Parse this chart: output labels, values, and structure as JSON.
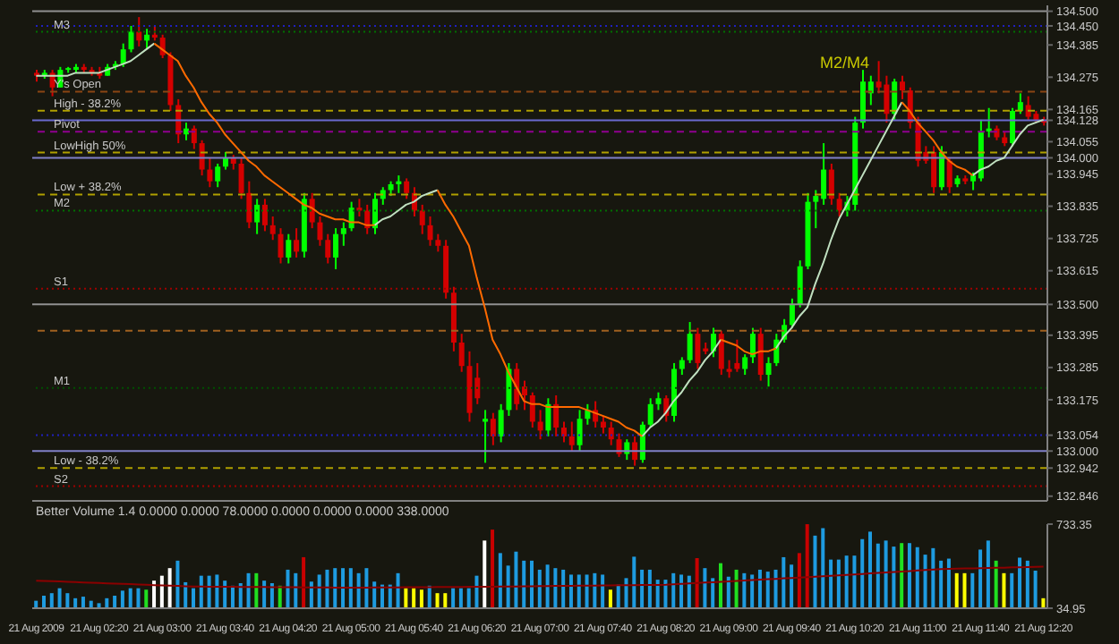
{
  "chart_data": [
    {
      "type": "candlestick",
      "categories": [
        null,
        null,
        null,
        null,
        null,
        null,
        null,
        null,
        null,
        null,
        null,
        null,
        null,
        null,
        null,
        null,
        null,
        null,
        null,
        null,
        null,
        null,
        null,
        null,
        null,
        null,
        null,
        null,
        null,
        null,
        null,
        null,
        null,
        null,
        null,
        null,
        null,
        null,
        null,
        null,
        null,
        null,
        null,
        null,
        null,
        null,
        null,
        null,
        null,
        null,
        null,
        null,
        null,
        null,
        null,
        null,
        null,
        null,
        null,
        null,
        null,
        null,
        null,
        null,
        null,
        null,
        null,
        null,
        null,
        null,
        null,
        null,
        null,
        null,
        null,
        null,
        null,
        null,
        null,
        null,
        null,
        null,
        null,
        null,
        null,
        null,
        null,
        null,
        null,
        null,
        null,
        null,
        null,
        null,
        null,
        null,
        null,
        null,
        null,
        null,
        null,
        null,
        null,
        null,
        null,
        null,
        null,
        null,
        null,
        null,
        null,
        null,
        null,
        null,
        null,
        null,
        null,
        null,
        null,
        null,
        null,
        null,
        null,
        null,
        null,
        null,
        null,
        null,
        null
      ],
      "tick_labels": "y",
      "ylim": [
        132.83,
        134.52
      ],
      "yticks": [
        {
          "value": 134.5,
          "label": "134.500"
        },
        {
          "value": 134.45,
          "label": "134.450"
        },
        134.385,
        134.275,
        134.165,
        134.128,
        134.055,
        {
          "value": 134.0,
          "label": "134.000"
        },
        133.945,
        133.835,
        133.725,
        133.615,
        {
          "value": 133.5,
          "label": "133.500"
        },
        133.395,
        133.285,
        133.175,
        133.054,
        {
          "value": 133.0,
          "label": "133.000"
        },
        132.942,
        132.846
      ],
      "ohlc": [
        [
          134.29,
          134.3,
          134.26,
          134.28
        ],
        [
          134.28,
          134.3,
          134.27,
          134.29
        ],
        [
          134.29,
          134.3,
          134.21,
          134.24
        ],
        [
          134.24,
          134.31,
          134.24,
          134.3
        ],
        [
          134.3,
          134.31,
          134.29,
          134.3
        ],
        [
          134.3,
          134.32,
          134.29,
          134.31
        ],
        [
          134.31,
          134.32,
          134.29,
          134.3
        ],
        [
          134.3,
          134.31,
          134.28,
          134.29
        ],
        [
          134.29,
          134.31,
          134.27,
          134.28
        ],
        [
          134.28,
          134.32,
          134.28,
          134.31
        ],
        [
          134.31,
          134.33,
          134.3,
          134.32
        ],
        [
          134.32,
          134.39,
          134.31,
          134.37
        ],
        [
          134.37,
          134.45,
          134.36,
          134.43
        ],
        [
          134.43,
          134.48,
          134.38,
          134.4
        ],
        [
          134.4,
          134.44,
          134.37,
          134.42
        ],
        [
          134.42,
          134.45,
          134.4,
          134.41
        ],
        [
          134.41,
          134.42,
          134.34,
          134.35
        ],
        [
          134.35,
          134.36,
          134.16,
          134.18
        ],
        [
          134.18,
          134.2,
          134.05,
          134.08
        ],
        [
          134.08,
          134.12,
          134.06,
          134.1
        ],
        [
          134.1,
          134.11,
          134.03,
          134.05
        ],
        [
          134.05,
          134.06,
          133.94,
          133.96
        ],
        [
          133.96,
          134.0,
          133.9,
          133.92
        ],
        [
          133.92,
          133.98,
          133.9,
          133.97
        ],
        [
          133.97,
          134.02,
          133.96,
          134.0
        ],
        [
          134.0,
          134.01,
          133.96,
          133.98
        ],
        [
          133.98,
          134.0,
          133.86,
          133.88
        ],
        [
          133.88,
          133.92,
          133.76,
          133.78
        ],
        [
          133.78,
          133.86,
          133.74,
          133.84
        ],
        [
          133.84,
          133.86,
          133.75,
          133.77
        ],
        [
          133.77,
          133.8,
          133.72,
          133.74
        ],
        [
          133.74,
          133.76,
          133.64,
          133.66
        ],
        [
          133.66,
          133.74,
          133.64,
          133.72
        ],
        [
          133.72,
          133.76,
          133.66,
          133.68
        ],
        [
          133.68,
          133.88,
          133.66,
          133.86
        ],
        [
          133.86,
          133.88,
          133.76,
          133.78
        ],
        [
          133.78,
          133.8,
          133.7,
          133.72
        ],
        [
          133.72,
          133.74,
          133.64,
          133.66
        ],
        [
          133.66,
          133.76,
          133.62,
          133.74
        ],
        [
          133.74,
          133.78,
          133.7,
          133.76
        ],
        [
          133.76,
          133.85,
          133.75,
          133.83
        ],
        [
          133.83,
          133.86,
          133.8,
          133.82
        ],
        [
          133.82,
          133.84,
          133.74,
          133.76
        ],
        [
          133.76,
          133.88,
          133.74,
          133.86
        ],
        [
          133.86,
          133.9,
          133.84,
          133.89
        ],
        [
          133.89,
          133.92,
          133.87,
          133.91
        ],
        [
          133.91,
          133.94,
          133.88,
          133.92
        ],
        [
          133.92,
          133.93,
          133.86,
          133.88
        ],
        [
          133.88,
          133.9,
          133.8,
          133.82
        ],
        [
          133.82,
          133.84,
          133.74,
          133.77
        ],
        [
          133.77,
          133.8,
          133.7,
          133.72
        ],
        [
          133.72,
          133.74,
          133.68,
          133.7
        ],
        [
          133.7,
          133.72,
          133.52,
          133.54
        ],
        [
          133.54,
          133.56,
          133.34,
          133.37
        ],
        [
          133.37,
          133.4,
          133.27,
          133.29
        ],
        [
          133.29,
          133.34,
          133.1,
          133.13
        ],
        [
          133.25,
          133.3,
          133.16,
          133.18
        ],
        [
          133.1,
          133.14,
          132.96,
          133.11
        ],
        [
          133.11,
          133.13,
          133.02,
          133.05
        ],
        [
          133.05,
          133.16,
          133.03,
          133.14
        ],
        [
          133.14,
          133.3,
          133.12,
          133.28
        ],
        [
          133.28,
          133.3,
          133.14,
          133.16
        ],
        [
          133.22,
          133.24,
          133.14,
          133.19
        ],
        [
          133.19,
          133.2,
          133.08,
          133.1
        ],
        [
          133.1,
          133.14,
          133.04,
          133.07
        ],
        [
          133.07,
          133.18,
          133.05,
          133.16
        ],
        [
          133.16,
          133.19,
          133.05,
          133.08
        ],
        [
          133.08,
          133.1,
          133.03,
          133.05
        ],
        [
          133.05,
          133.1,
          133.0,
          133.02
        ],
        [
          133.02,
          133.14,
          133.0,
          133.11
        ],
        [
          133.11,
          133.16,
          133.09,
          133.14
        ],
        [
          133.14,
          133.17,
          133.08,
          133.1
        ],
        [
          133.1,
          133.12,
          133.06,
          133.08
        ],
        [
          133.08,
          133.1,
          133.02,
          133.04
        ],
        [
          133.04,
          133.06,
          132.98,
          132.99
        ],
        [
          132.99,
          133.04,
          132.97,
          133.03
        ],
        [
          133.03,
          133.05,
          132.95,
          132.97
        ],
        [
          132.97,
          133.1,
          132.96,
          133.09
        ],
        [
          133.09,
          133.18,
          133.08,
          133.16
        ],
        [
          133.16,
          133.2,
          133.14,
          133.18
        ],
        [
          133.18,
          133.19,
          133.1,
          133.12
        ],
        [
          133.12,
          133.3,
          133.1,
          133.28
        ],
        [
          133.28,
          133.32,
          133.26,
          133.31
        ],
        [
          133.31,
          133.44,
          133.3,
          133.4
        ],
        [
          133.4,
          133.42,
          133.28,
          133.3
        ],
        [
          133.35,
          133.37,
          133.33,
          133.34
        ],
        [
          133.34,
          133.42,
          133.32,
          133.4
        ],
        [
          133.4,
          133.41,
          133.26,
          133.28
        ],
        [
          133.28,
          133.31,
          133.25,
          133.27
        ],
        [
          133.3,
          133.38,
          133.27,
          133.28
        ],
        [
          133.28,
          133.33,
          133.26,
          133.32
        ],
        [
          133.32,
          133.42,
          133.3,
          133.4
        ],
        [
          133.4,
          133.42,
          133.24,
          133.26
        ],
        [
          133.26,
          133.32,
          133.22,
          133.3
        ],
        [
          133.3,
          133.4,
          133.29,
          133.38
        ],
        [
          133.38,
          133.45,
          133.37,
          133.43
        ],
        [
          133.43,
          133.52,
          133.42,
          133.5
        ],
        [
          133.5,
          133.65,
          133.49,
          133.63
        ],
        [
          133.63,
          133.88,
          133.62,
          133.85
        ],
        [
          133.85,
          133.89,
          133.76,
          133.87
        ],
        [
          133.86,
          134.05,
          133.84,
          133.96
        ],
        [
          133.96,
          133.98,
          133.84,
          133.86
        ],
        [
          133.86,
          133.88,
          133.8,
          133.82
        ],
        [
          133.82,
          133.87,
          133.8,
          133.85
        ],
        [
          133.84,
          134.14,
          133.82,
          134.12
        ],
        [
          134.12,
          134.3,
          134.1,
          134.26
        ],
        [
          134.22,
          134.28,
          134.18,
          134.26
        ],
        [
          134.26,
          134.33,
          134.22,
          134.24
        ],
        [
          134.25,
          134.28,
          134.12,
          134.15
        ],
        [
          134.15,
          134.27,
          134.13,
          134.26
        ],
        [
          134.26,
          134.28,
          134.2,
          134.23
        ],
        [
          134.23,
          134.24,
          134.1,
          134.12
        ],
        [
          134.12,
          134.14,
          133.97,
          133.99
        ],
        [
          134.02,
          134.04,
          133.98,
          133.99
        ],
        [
          134.02,
          134.04,
          133.88,
          133.9
        ],
        [
          133.9,
          134.04,
          133.89,
          134.02
        ],
        [
          133.99,
          134.0,
          133.88,
          133.9
        ],
        [
          133.91,
          133.94,
          133.9,
          133.93
        ],
        [
          133.93,
          133.94,
          133.91,
          133.92
        ],
        [
          133.92,
          133.95,
          133.89,
          133.94
        ],
        [
          133.93,
          134.13,
          133.92,
          134.09
        ],
        [
          134.09,
          134.17,
          134.07,
          134.1
        ],
        [
          134.1,
          134.11,
          134.06,
          134.07
        ],
        [
          134.07,
          134.09,
          134.04,
          134.05
        ],
        [
          134.05,
          134.17,
          134.04,
          134.16
        ],
        [
          134.16,
          134.22,
          134.15,
          134.19
        ],
        [
          134.18,
          134.21,
          134.13,
          134.14
        ],
        [
          134.15,
          134.16,
          134.12,
          134.13
        ],
        [
          134.13,
          134.14,
          134.11,
          134.12
        ]
      ],
      "colors": [
        "#d40000",
        "#00ff00",
        "#d40000",
        "#00ff00",
        "#00ff00",
        "#00ff00",
        "#d40000",
        "#d40000",
        "#d40000",
        "#00ff00",
        "#00ff00",
        "#00ff00",
        "#00ff00",
        "#d40000",
        "#00ff00",
        "#d40000",
        "#d40000",
        "#d40000",
        "#d40000",
        "#00ff00",
        "#d40000",
        "#d40000",
        "#d40000",
        "#00ff00",
        "#00ff00",
        "#d40000",
        "#d40000",
        "#d40000",
        "#00ff00",
        "#d40000",
        "#d40000",
        "#d40000",
        "#00ff00",
        "#d40000",
        "#00ff00",
        "#d40000",
        "#d40000",
        "#d40000",
        "#00ff00",
        "#00ff00",
        "#00ff00",
        "#d40000",
        "#d40000",
        "#00ff00",
        "#00ff00",
        "#00ff00",
        "#00ff00",
        "#d40000",
        "#d40000",
        "#d40000",
        "#d40000",
        "#d40000",
        "#d40000",
        "#d40000",
        "#d40000",
        "#d40000",
        "#d40000",
        "#00ff00",
        "#d40000",
        "#00ff00",
        "#00ff00",
        "#d40000",
        "#d40000",
        "#d40000",
        "#d40000",
        "#00ff00",
        "#d40000",
        "#d40000",
        "#d40000",
        "#00ff00",
        "#00ff00",
        "#d40000",
        "#d40000",
        "#d40000",
        "#d40000",
        "#00ff00",
        "#d40000",
        "#00ff00",
        "#00ff00",
        "#00ff00",
        "#d40000",
        "#00ff00",
        "#00ff00",
        "#00ff00",
        "#d40000",
        "#d40000",
        "#00ff00",
        "#d40000",
        "#d40000",
        "#d40000",
        "#00ff00",
        "#00ff00",
        "#d40000",
        "#00ff00",
        "#00ff00",
        "#00ff00",
        "#00ff00",
        "#00ff00",
        "#00ff00",
        "#00ff00",
        "#00ff00",
        "#d40000",
        "#d40000",
        "#00ff00",
        "#00ff00",
        "#00ff00",
        "#00ff00",
        "#d40000",
        "#d40000",
        "#00ff00",
        "#d40000",
        "#d40000",
        "#d40000",
        "#d40000",
        "#d40000",
        "#00ff00",
        "#d40000",
        "#00ff00",
        "#d40000",
        "#00ff00",
        "#00ff00",
        "#00ff00",
        "#d40000",
        "#d40000",
        "#00ff00",
        "#00ff00",
        "#d40000",
        "#d40000",
        "#d40000"
      ],
      "series": [
        {
          "type": "line",
          "color": "#c0e0c0",
          "values": [
            134.28,
            134.28,
            134.28,
            134.28,
            134.28,
            134.29,
            134.29,
            134.29,
            134.29,
            134.3,
            134.31,
            134.32,
            134.33,
            134.35,
            134.37,
            134.39,
            null,
            null,
            null,
            null,
            null,
            null,
            null,
            null,
            null,
            null,
            null,
            null,
            null,
            null,
            null,
            null,
            null,
            null,
            null,
            null,
            null,
            null,
            null,
            null,
            null,
            null,
            null,
            133.77,
            133.79,
            133.8,
            133.82,
            133.84,
            133.85,
            133.87,
            133.88,
            133.89,
            null,
            null,
            null,
            null,
            null,
            null,
            null,
            null,
            null,
            null,
            null,
            null,
            null,
            null,
            null,
            null,
            null,
            null,
            null,
            null,
            null,
            null,
            null,
            null,
            null,
            133.05,
            133.08,
            133.1,
            133.13,
            133.17,
            133.2,
            133.24,
            133.27,
            133.31,
            133.34,
            133.38,
            null,
            null,
            null,
            null,
            null,
            null,
            133.35,
            133.39,
            133.42,
            133.46,
            133.49,
            133.57,
            133.64,
            133.72,
            133.79,
            133.84,
            133.89,
            133.94,
            133.99,
            134.04,
            134.09,
            134.14,
            134.19,
            null,
            null,
            null,
            null,
            null,
            null,
            null,
            null,
            133.94,
            133.96,
            133.97,
            133.99,
            134.0,
            134.04,
            134.08,
            134.11,
            134.12,
            134.13
          ]
        },
        {
          "type": "line",
          "color": "#ff6a00",
          "values": [
            null,
            null,
            null,
            null,
            null,
            null,
            null,
            null,
            null,
            null,
            null,
            null,
            null,
            null,
            null,
            134.39,
            134.37,
            134.35,
            134.33,
            134.28,
            134.24,
            134.19,
            134.15,
            134.12,
            134.08,
            134.05,
            134.02,
            133.99,
            133.97,
            133.94,
            133.92,
            133.9,
            133.88,
            133.86,
            133.84,
            133.83,
            133.81,
            133.8,
            133.79,
            133.79,
            133.78,
            133.78,
            133.77,
            133.77,
            null,
            null,
            null,
            null,
            null,
            null,
            null,
            133.89,
            133.84,
            133.8,
            133.75,
            133.7,
            133.59,
            133.49,
            133.38,
            133.33,
            133.27,
            133.22,
            133.17,
            133.16,
            133.16,
            133.15,
            133.15,
            133.15,
            133.15,
            133.15,
            133.14,
            133.13,
            133.12,
            133.11,
            133.1,
            133.08,
            133.07,
            133.05,
            null,
            null,
            null,
            null,
            null,
            null,
            null,
            null,
            null,
            133.38,
            133.37,
            133.36,
            133.34,
            133.33,
            133.34,
            133.34,
            133.35,
            null,
            null,
            null,
            null,
            null,
            null,
            null,
            null,
            null,
            null,
            null,
            null,
            null,
            null,
            null,
            134.19,
            134.16,
            134.12,
            134.09,
            134.06,
            134.02,
            133.99,
            133.97,
            133.96,
            133.94,
            null,
            null,
            null,
            null,
            null,
            null,
            null,
            null,
            null
          ]
        }
      ],
      "ref_lines": [
        {
          "axis": "y",
          "value": 134.5,
          "color": "#909090",
          "line_style": "solid"
        },
        {
          "axis": "y",
          "value": 134.45,
          "color": "#2020c0",
          "line_style": "dotted"
        },
        {
          "axis": "y",
          "value": 134.43,
          "label": "M3",
          "color": "#007000",
          "line_style": "dotted"
        },
        {
          "axis": "y",
          "value": 134.226,
          "label": "Y's Open",
          "color": "#8b4513",
          "line_style": "dashed"
        },
        {
          "axis": "y",
          "value": 134.161,
          "label": "High - 38.2%",
          "color": "#b0a000",
          "line_style": "dashed"
        },
        {
          "axis": "y",
          "value": 134.128,
          "color": "#6a6ad0",
          "line_style": "solid"
        },
        {
          "axis": "y",
          "value": 134.089,
          "label": "Pivot",
          "color": "#900090",
          "line_style": "dashed"
        },
        {
          "axis": "y",
          "value": 134.018,
          "label": "LowHigh 50%",
          "color": "#b0a000",
          "line_style": "dashed"
        },
        {
          "axis": "y",
          "value": 134.0,
          "color": "#8080c8",
          "line_style": "solid"
        },
        {
          "axis": "y",
          "value": 133.875,
          "label": "Low + 38.2%",
          "color": "#b0a000",
          "line_style": "dashed"
        },
        {
          "axis": "y",
          "value": 133.82,
          "label": "M2",
          "color": "#007000",
          "line_style": "dotted"
        },
        {
          "axis": "y",
          "value": 133.554,
          "label": "S1",
          "color": "#a00000",
          "line_style": "dotted"
        },
        {
          "axis": "y",
          "value": 133.5,
          "color": "#909090",
          "line_style": "solid"
        },
        {
          "axis": "y",
          "value": 133.41,
          "color": "#a06020",
          "line_style": "dashed"
        },
        {
          "axis": "y",
          "value": 133.215,
          "label": "M1",
          "color": "#005000",
          "line_style": "dotted"
        },
        {
          "axis": "y",
          "value": 133.054,
          "color": "#2020c0",
          "line_style": "dotted"
        },
        {
          "axis": "y",
          "value": 133.0,
          "color": "#8080c8",
          "line_style": "solid"
        },
        {
          "axis": "y",
          "value": 132.942,
          "label": "Low - 38.2%",
          "color": "#b0a000",
          "line_style": "dashed"
        },
        {
          "axis": "y",
          "value": 132.88,
          "label": "S2",
          "color": "#a00000",
          "line_style": "dotted"
        }
      ],
      "annotations": [
        "M2/M4"
      ]
    },
    {
      "type": "bar",
      "title": "Better Volume 1.4 0.0000 0.0000 78.0000 0.0000 0.0000 0.0000 338.0000",
      "categories": [
        "21 Aug 2009",
        null,
        null,
        null,
        null,
        null,
        null,
        null,
        "21 Aug 02:20",
        null,
        null,
        null,
        null,
        null,
        null,
        null,
        "21 Aug 03:00",
        null,
        null,
        null,
        null,
        null,
        null,
        null,
        "21 Aug 03:40",
        null,
        null,
        null,
        null,
        null,
        null,
        null,
        "21 Aug 04:20",
        null,
        null,
        null,
        null,
        null,
        null,
        null,
        "21 Aug 05:00",
        null,
        null,
        null,
        null,
        null,
        null,
        null,
        "21 Aug 05:40",
        null,
        null,
        null,
        null,
        null,
        null,
        null,
        "21 Aug 06:20",
        null,
        null,
        null,
        null,
        null,
        null,
        null,
        "21 Aug 07:00",
        null,
        null,
        null,
        null,
        null,
        null,
        null,
        "21 Aug 07:40",
        null,
        null,
        null,
        null,
        null,
        null,
        null,
        "21 Aug 08:20",
        null,
        null,
        null,
        null,
        null,
        null,
        null,
        "21 Aug 09:00",
        null,
        null,
        null,
        null,
        null,
        null,
        null,
        "21 Aug 09:40",
        null,
        null,
        null,
        null,
        null,
        null,
        null,
        "21 Aug 10:20",
        null,
        null,
        null,
        null,
        null,
        null,
        null,
        "21 Aug 11:00",
        null,
        null,
        null,
        null,
        null,
        null,
        null,
        "21 Aug 11:40",
        null,
        null,
        null,
        null,
        null,
        null,
        null,
        "21 Aug 12:20"
      ],
      "ylim": [
        34.95,
        733.35
      ],
      "yticks": [
        34.95,
        733.35
      ],
      "series": [
        {
          "type": "bar",
          "values": [
            97,
            139,
            160,
            201,
            160,
            118,
            131,
            97,
            77,
            118,
            139,
            181,
            201,
            201,
            189,
            264,
            305,
            368,
            430,
            251,
            201,
            305,
            305,
            314,
            264,
            222,
            243,
            326,
            326,
            264,
            243,
            222,
            355,
            326,
            459,
            256,
            314,
            355,
            368,
            368,
            368,
            326,
            368,
            256,
            231,
            231,
            326,
            201,
            201,
            189,
            222,
            160,
            160,
            201,
            201,
            201,
            305,
            597,
            688,
            493,
            389,
            505,
            430,
            430,
            355,
            397,
            368,
            355,
            314,
            314,
            314,
            326,
            314,
            189,
            231,
            285,
            463,
            355,
            355,
            272,
            272,
            326,
            314,
            305,
            451,
            368,
            285,
            409,
            297,
            355,
            326,
            314,
            355,
            339,
            355,
            459,
            397,
            493,
            733,
            638,
            700,
            439,
            439,
            472,
            472,
            609,
            671,
            572,
            597,
            547,
            576,
            576,
            542,
            480,
            534,
            430,
            447,
            326,
            326,
            326,
            522,
            597,
            430,
            326,
            326,
            455,
            430,
            347,
            118
          ],
          "colors": [
            "#1e9be0",
            "#1e9be0",
            "#1e9be0",
            "#1e9be0",
            "#1e9be0",
            "#1e9be0",
            "#1e9be0",
            "#1e9be0",
            "#1e9be0",
            "#1e9be0",
            "#1e9be0",
            "#1e9be0",
            "#1e9be0",
            "#1e9be0",
            "#20e020",
            "#ffffff",
            "#ffffff",
            "#ffffff",
            "#1e9be0",
            "#1e9be0",
            "#1e9be0",
            "#1e9be0",
            "#1e9be0",
            "#1e9be0",
            "#1e9be0",
            "#1e9be0",
            "#1e9be0",
            "#1e9be0",
            "#20e020",
            "#1e9be0",
            "#1e9be0",
            "#20e020",
            "#1e9be0",
            "#1e9be0",
            "#c80000",
            "#1e9be0",
            "#1e9be0",
            "#1e9be0",
            "#1e9be0",
            "#1e9be0",
            "#1e9be0",
            "#1e9be0",
            "#1e9be0",
            "#1e9be0",
            "#1e9be0",
            "#1e9be0",
            "#1e9be0",
            "#ffff00",
            "#ffff00",
            "#ffff00",
            "#1e9be0",
            "#ffff00",
            "#ffff00",
            "#1e9be0",
            "#1e9be0",
            "#1e9be0",
            "#1e9be0",
            "#ffffff",
            "#c80000",
            "#1e9be0",
            "#1e9be0",
            "#1e9be0",
            "#1e9be0",
            "#1e9be0",
            "#1e9be0",
            "#1e9be0",
            "#1e9be0",
            "#1e9be0",
            "#1e9be0",
            "#1e9be0",
            "#1e9be0",
            "#1e9be0",
            "#1e9be0",
            "#ffff00",
            "#1e9be0",
            "#1e9be0",
            "#1e9be0",
            "#1e9be0",
            "#1e9be0",
            "#1e9be0",
            "#1e9be0",
            "#1e9be0",
            "#1e9be0",
            "#1e9be0",
            "#c80000",
            "#1e9be0",
            "#1e9be0",
            "#20e020",
            "#1e9be0",
            "#20e020",
            "#1e9be0",
            "#1e9be0",
            "#1e9be0",
            "#1e9be0",
            "#1e9be0",
            "#1e9be0",
            "#1e9be0",
            "#c80000",
            "#c80000",
            "#1e9be0",
            "#1e9be0",
            "#1e9be0",
            "#1e9be0",
            "#1e9be0",
            "#1e9be0",
            "#1e9be0",
            "#1e9be0",
            "#1e9be0",
            "#1e9be0",
            "#1e9be0",
            "#20e020",
            "#1e9be0",
            "#1e9be0",
            "#1e9be0",
            "#1e9be0",
            "#1e9be0",
            "#1e9be0",
            "#ffff00",
            "#ffff00",
            "#1e9be0",
            "#1e9be0",
            "#1e9be0",
            "#20e020",
            "#ffff00",
            "#1e9be0",
            "#1e9be0",
            "#1e9be0",
            "#1e9be0",
            "#ffff00"
          ]
        },
        {
          "type": "line",
          "color": "#8b0000",
          "values": [
            264,
            262,
            259,
            257,
            254,
            252,
            249,
            247,
            244,
            242,
            240,
            237,
            235,
            232,
            230,
            227,
            225,
            222,
            220,
            217,
            215,
            215,
            214,
            214,
            213,
            213,
            212,
            212,
            211,
            211,
            210,
            210,
            209,
            209,
            208,
            208,
            207,
            207,
            206,
            206,
            205,
            206,
            206,
            207,
            207,
            208,
            208,
            209,
            209,
            210,
            210,
            211,
            211,
            212,
            212,
            213,
            213,
            214,
            214,
            215,
            215,
            216,
            217,
            217,
            218,
            219,
            220,
            220,
            221,
            222,
            223,
            223,
            224,
            225,
            226,
            226,
            227,
            228,
            229,
            229,
            230,
            234,
            237,
            241,
            244,
            248,
            251,
            255,
            258,
            262,
            265,
            269,
            272,
            276,
            279,
            283,
            286,
            290,
            293,
            297,
            300,
            304,
            308,
            312,
            316,
            320,
            324,
            328,
            332,
            336,
            340,
            344,
            348,
            352,
            356,
            360,
            362,
            363,
            365,
            366,
            368,
            369,
            371,
            372,
            374,
            375,
            377,
            378,
            380
          ]
        }
      ]
    }
  ]
}
